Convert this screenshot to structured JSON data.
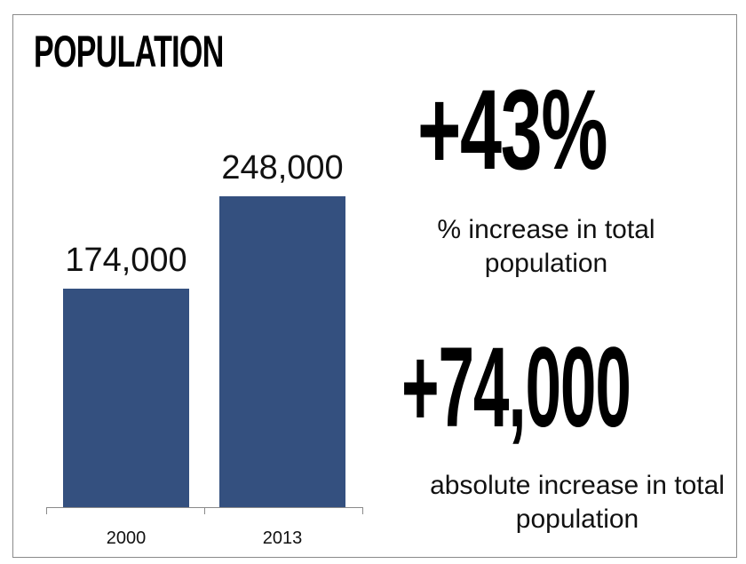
{
  "title": "POPULATION",
  "chart_data": {
    "type": "bar",
    "categories": [
      "2000",
      "2013"
    ],
    "values": [
      174000,
      248000
    ],
    "data_labels": [
      "174,000",
      "248,000"
    ],
    "color": "#34507f",
    "ylim": [
      0,
      270000
    ],
    "grid": false
  },
  "stats": [
    {
      "value": "+43%",
      "description": "% increase in total population"
    },
    {
      "value": "+74,000",
      "description": "absolute increase in total population"
    }
  ]
}
